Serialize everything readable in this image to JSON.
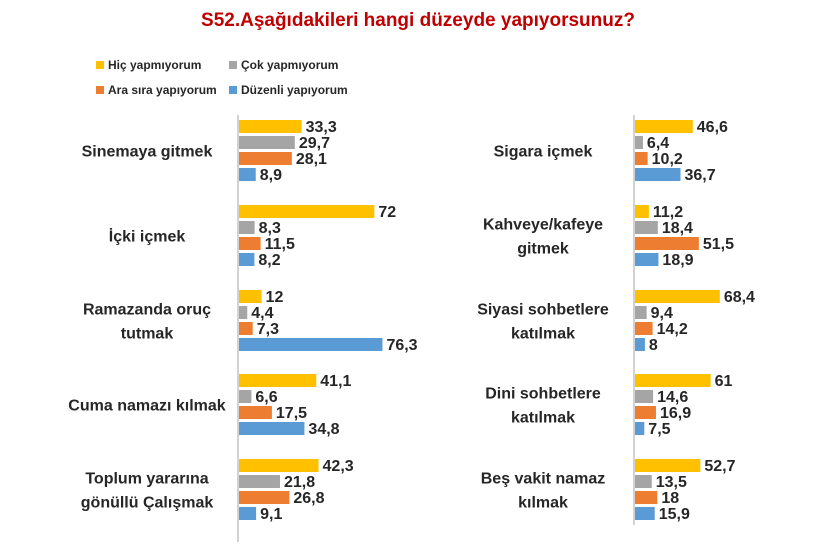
{
  "title": "S52.Aşağıdakileri hangi düzeyde yapıyorsunuz?",
  "colors": {
    "title": "#C00000",
    "axis": "#A6A6A6",
    "text": "#262626"
  },
  "chart_data": {
    "type": "bar",
    "orientation": "horizontal",
    "legend_position": "top-left",
    "grid": false,
    "series": [
      {
        "name": "Hiç yapmıyorum",
        "color": "#FFC000"
      },
      {
        "name": "Çok yapmıyorum",
        "color": "#A5A5A5"
      },
      {
        "name": "Ara sıra yapıyorum",
        "color": "#ED7D31"
      },
      {
        "name": "Düzenli yapıyorum",
        "color": "#5B9BD5"
      }
    ],
    "panels": [
      {
        "categories": [
          {
            "label": [
              "Sinemaya gitmek"
            ],
            "values": [
              33.3,
              29.7,
              28.1,
              8.9
            ],
            "value_labels": [
              "33,3",
              "29,7",
              "28,1",
              "8,9"
            ]
          },
          {
            "label": [
              "İçki içmek"
            ],
            "values": [
              72,
              8.3,
              11.5,
              8.2
            ],
            "value_labels": [
              "72",
              "8,3",
              "11,5",
              "8,2"
            ]
          },
          {
            "label": [
              "Ramazanda oruç",
              "tutmak"
            ],
            "values": [
              12,
              4.4,
              7.3,
              76.3
            ],
            "value_labels": [
              "12",
              "4,4",
              "7,3",
              "76,3"
            ]
          },
          {
            "label": [
              "Cuma namazı kılmak"
            ],
            "values": [
              41.1,
              6.6,
              17.5,
              34.8
            ],
            "value_labels": [
              "41,1",
              "6,6",
              "17,5",
              "34,8"
            ]
          },
          {
            "label": [
              "Toplum yararına",
              "gönüllü Çalışmak"
            ],
            "values": [
              42.3,
              21.8,
              26.8,
              9.1
            ],
            "value_labels": [
              "42,3",
              "21,8",
              "26,8",
              "9,1"
            ]
          }
        ]
      },
      {
        "categories": [
          {
            "label": [
              "Sigara içmek"
            ],
            "values": [
              46.6,
              6.4,
              10.2,
              36.7
            ],
            "value_labels": [
              "46,6",
              "6,4",
              "10,2",
              "36,7"
            ]
          },
          {
            "label": [
              "Kahveye/kafeye",
              "gitmek"
            ],
            "values": [
              11.2,
              18.4,
              51.5,
              18.9
            ],
            "value_labels": [
              "11,2",
              "18,4",
              "51,5",
              "18,9"
            ]
          },
          {
            "label": [
              "Siyasi sohbetlere",
              "katılmak"
            ],
            "values": [
              68.4,
              9.4,
              14.2,
              8
            ],
            "value_labels": [
              "68,4",
              "9,4",
              "14,2",
              "8"
            ]
          },
          {
            "label": [
              "Dini sohbetlere",
              "katılmak"
            ],
            "values": [
              61,
              14.6,
              16.9,
              7.5
            ],
            "value_labels": [
              "61",
              "14,6",
              "16,9",
              "7,5"
            ]
          },
          {
            "label": [
              "Beş vakit namaz",
              "kılmak"
            ],
            "values": [
              52.7,
              13.5,
              18,
              15.9
            ],
            "value_labels": [
              "52,7",
              "13,5",
              "18",
              "15,9"
            ]
          }
        ]
      }
    ]
  }
}
